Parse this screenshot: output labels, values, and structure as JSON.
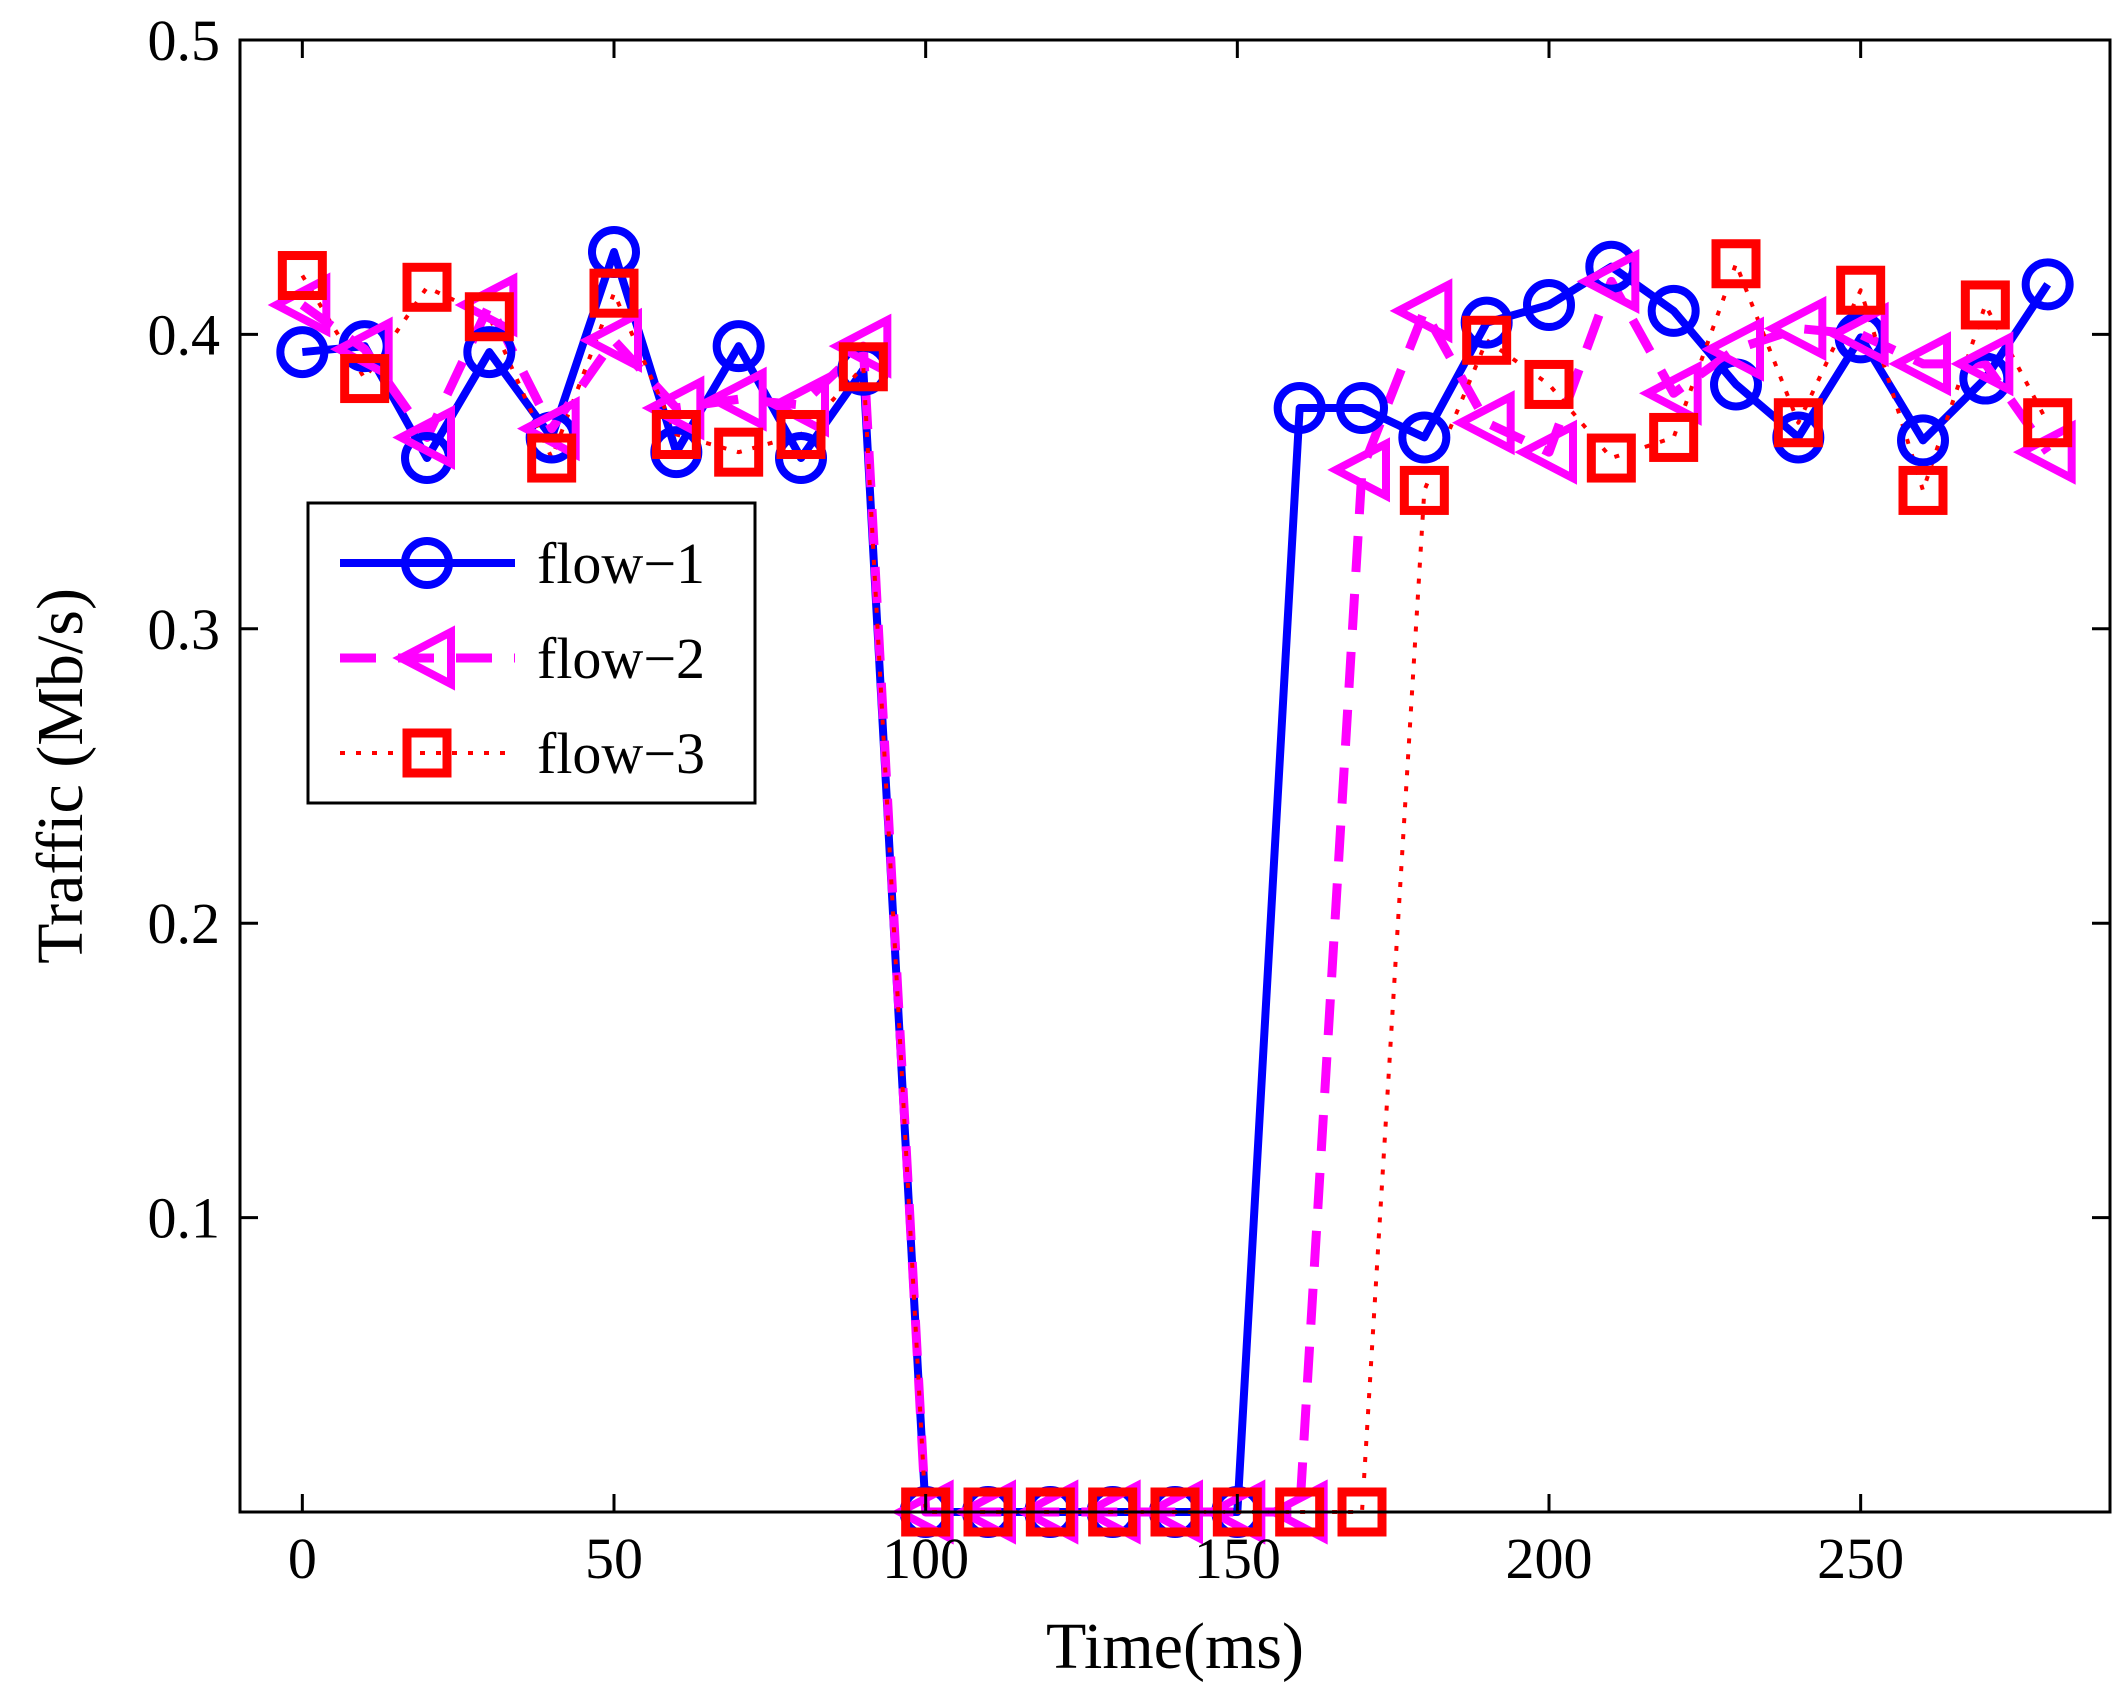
{
  "chart_data": {
    "type": "line",
    "title": "",
    "xlabel": "Time(ms)",
    "ylabel": "Traffic (Mb/s)",
    "xlim": [
      -10,
      290
    ],
    "ylim": [
      0,
      0.5
    ],
    "xticks": [
      0,
      50,
      100,
      150,
      200,
      250
    ],
    "xtick_labels": [
      "0",
      "50",
      "100",
      "150",
      "200",
      "250"
    ],
    "yticks": [
      0.1,
      0.2,
      0.3,
      0.4,
      0.5
    ],
    "ytick_labels": [
      "0.1",
      "0.2",
      "0.3",
      "0.4",
      "0.5"
    ],
    "grid": false,
    "legend_position": "center-left",
    "x": [
      0,
      10,
      20,
      30,
      40,
      50,
      60,
      70,
      80,
      90,
      100,
      110,
      120,
      130,
      140,
      150,
      160,
      170,
      180,
      190,
      200,
      210,
      220,
      230,
      240,
      250,
      260,
      270,
      280
    ],
    "series": [
      {
        "name": "flow−1",
        "color": "#0000ff",
        "line_style": "solid",
        "marker": "circle",
        "values": [
          0.394,
          0.396,
          0.358,
          0.394,
          0.365,
          0.428,
          0.36,
          0.396,
          0.358,
          0.388,
          0.0,
          0.0,
          0.0,
          0.0,
          0.0,
          0.0,
          0.375,
          0.375,
          0.365,
          0.404,
          0.41,
          0.423,
          0.408,
          0.383,
          0.365,
          0.399,
          0.364,
          0.385,
          0.417
        ]
      },
      {
        "name": "flow−2",
        "color": "#ff00ff",
        "line_style": "dashed",
        "marker": "triangle-left",
        "values": [
          0.41,
          0.395,
          0.365,
          0.41,
          0.368,
          0.398,
          0.375,
          0.378,
          0.376,
          0.396,
          0.0,
          0.0,
          0.0,
          0.0,
          0.0,
          0.0,
          0.0,
          0.354,
          0.408,
          0.37,
          0.36,
          0.418,
          0.38,
          0.395,
          0.402,
          0.4,
          0.39,
          0.39,
          0.36
        ]
      },
      {
        "name": "flow−3",
        "color": "#ff0000",
        "line_style": "dotted",
        "marker": "square",
        "values": [
          0.42,
          0.385,
          0.416,
          0.406,
          0.358,
          0.414,
          0.366,
          0.36,
          0.366,
          0.389,
          0.0,
          0.0,
          0.0,
          0.0,
          0.0,
          0.0,
          0.0,
          0.0,
          0.347,
          0.398,
          0.383,
          0.358,
          0.365,
          0.424,
          0.37,
          0.415,
          0.347,
          0.41,
          0.37
        ]
      }
    ]
  }
}
